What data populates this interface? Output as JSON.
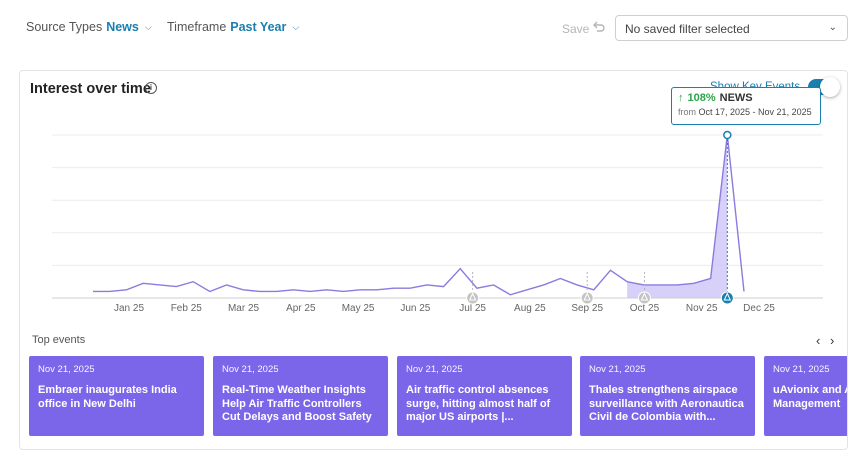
{
  "filters": {
    "source": {
      "label": "Source Types",
      "value": "News"
    },
    "timeframe": {
      "label": "Timeframe",
      "value": "Past Year"
    },
    "save_label": "Save",
    "saved_filter_placeholder": "No saved filter selected"
  },
  "panel": {
    "title": "Interest over time",
    "key_events_label": "Show Key Events",
    "key_events_on": true
  },
  "tooltip": {
    "change": "108%",
    "source": "NEWS",
    "from_label": "from",
    "range": "Oct 17, 2025 - Nov 21, 2025"
  },
  "chart_data": {
    "type": "line",
    "title": "Interest over time",
    "xlabel": "",
    "ylabel": "",
    "x_ticks": [
      "Jan 25",
      "Feb 25",
      "Mar 25",
      "Apr 25",
      "May 25",
      "Jun 25",
      "Jul 25",
      "Aug 25",
      "Sep 25",
      "Oct 25",
      "Nov 25",
      "Dec 25"
    ],
    "ylim": [
      0,
      100
    ],
    "grid": true,
    "y_ticks_shown": false,
    "series": [
      {
        "values": [
          4,
          4,
          5,
          9,
          8,
          7,
          10,
          4,
          8,
          5,
          4,
          4,
          5,
          4,
          5,
          4,
          5,
          5,
          6,
          6,
          8,
          7,
          18,
          6,
          8,
          2,
          5,
          8,
          12,
          8,
          5,
          17,
          10,
          8,
          8,
          8,
          9,
          12,
          100,
          4
        ],
        "color": "#8b7be0"
      }
    ],
    "key_event_markers": [
      "Jul 25",
      "Sep 25",
      "Oct 25",
      "Dec 25"
    ],
    "highlight": {
      "point_index": 38,
      "range": "Oct 17, 2025 - Nov 21, 2025",
      "change": "108%"
    }
  },
  "top_events": {
    "label": "Top events",
    "cards": [
      {
        "date": "Nov 21, 2025",
        "title": "Embraer inaugurates India office in New Delhi"
      },
      {
        "date": "Nov 21, 2025",
        "title": "Real-Time Weather Insights Help Air Traffic Controllers Cut Delays and Boost Safety"
      },
      {
        "date": "Nov 21, 2025",
        "title": "Air traffic control absences surge, hitting almost half of major US airports |..."
      },
      {
        "date": "Nov 21, 2025",
        "title": "Thales strengthens airspace surveillance with Aeronautica Civil de Colombia with..."
      },
      {
        "date": "Nov 21, 2025",
        "title": "uAvionix and Advance UAS Management"
      }
    ]
  },
  "colors": {
    "accent": "#1a7fb0",
    "line": "#8b7be0",
    "card": "#7b66ea",
    "positive": "#2aa54a"
  }
}
